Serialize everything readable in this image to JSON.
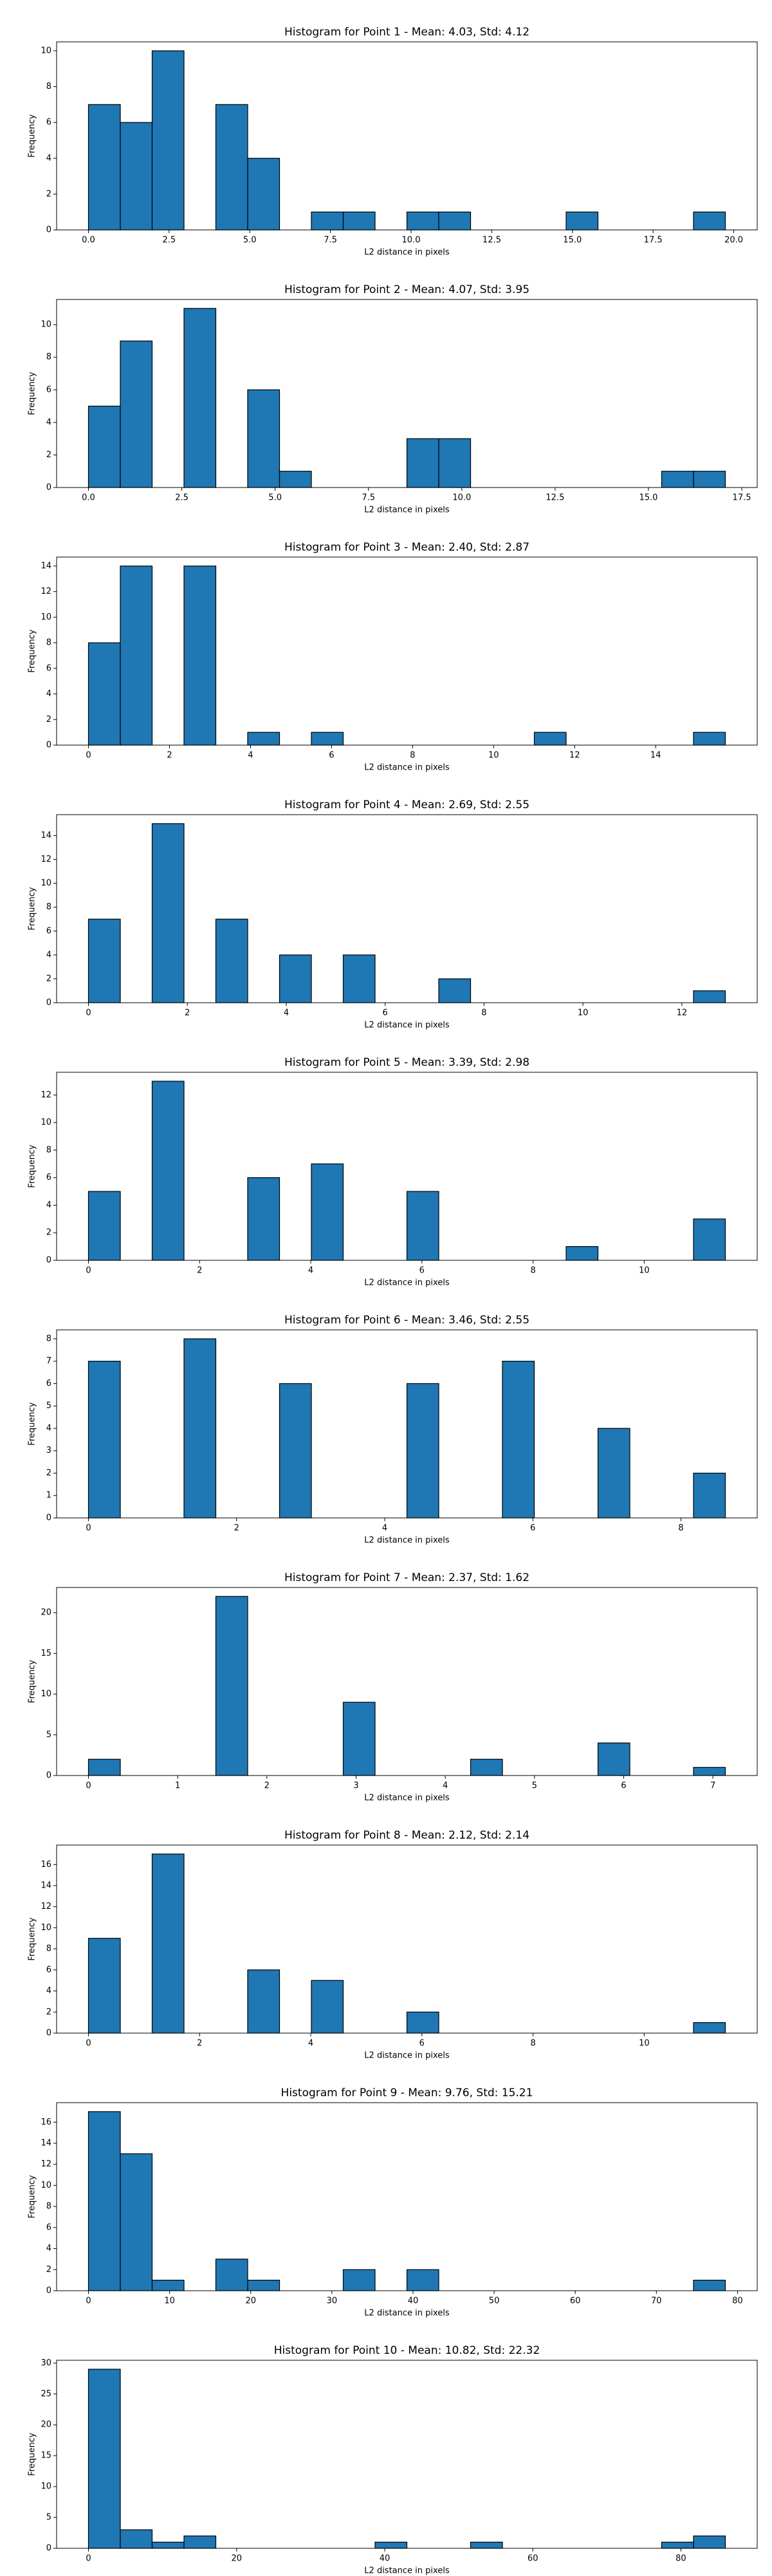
{
  "chart_data": [
    {
      "type": "histogram",
      "title": "Histogram for Point 1 - Mean: 4.03, Std: 4.12",
      "xlabel": "L2 distance in pixels",
      "ylabel": "Frequency",
      "color": "#1f77b4",
      "bins": [
        0,
        0.987,
        1.974,
        2.961,
        3.948,
        4.935,
        5.922,
        6.909,
        7.896,
        8.883,
        9.87,
        10.857,
        11.844,
        12.831,
        13.818,
        14.805,
        15.792,
        16.779,
        17.766,
        18.753,
        19.74
      ],
      "values": [
        7,
        6,
        10,
        0,
        7,
        4,
        0,
        1,
        1,
        0,
        1,
        1,
        0,
        0,
        0,
        1,
        0,
        0,
        0,
        1
      ],
      "xlim": [
        -0.987,
        20.727
      ],
      "ylim": [
        0,
        10.5
      ],
      "xticks": [
        {
          "value": 0,
          "label": "0.0"
        },
        2.5,
        {
          "value": 5,
          "label": "5.0"
        },
        7.5,
        {
          "value": 10,
          "label": "10.0"
        },
        12.5,
        {
          "value": 15,
          "label": "15.0"
        },
        17.5,
        {
          "value": 20,
          "label": "20.0"
        }
      ],
      "yticks": [
        0,
        2,
        4,
        6,
        8,
        10
      ]
    },
    {
      "type": "histogram",
      "title": "Histogram for Point 2 - Mean: 4.07, Std: 3.95",
      "xlabel": "L2 distance in pixels",
      "ylabel": "Frequency",
      "color": "#1f77b4",
      "bins": [
        0,
        0.853,
        1.706,
        2.559,
        3.412,
        4.265,
        5.118,
        5.971,
        6.824,
        7.677,
        8.53,
        9.383,
        10.236,
        11.089,
        11.942,
        12.795,
        13.648,
        14.501,
        15.354,
        16.207,
        17.06
      ],
      "values": [
        5,
        9,
        0,
        11,
        0,
        6,
        1,
        0,
        0,
        0,
        3,
        3,
        0,
        0,
        0,
        0,
        0,
        0,
        1,
        1
      ],
      "xlim": [
        -0.853,
        17.913
      ],
      "ylim": [
        0,
        11.55
      ],
      "xticks": [
        {
          "value": 0,
          "label": "0.0"
        },
        2.5,
        {
          "value": 5,
          "label": "5.0"
        },
        7.5,
        {
          "value": 10,
          "label": "10.0"
        },
        12.5,
        {
          "value": 15,
          "label": "15.0"
        },
        17.5
      ],
      "yticks": [
        0,
        2,
        4,
        6,
        8,
        10
      ]
    },
    {
      "type": "histogram",
      "title": "Histogram for Point 3 - Mean: 2.40, Std: 2.87",
      "xlabel": "L2 distance in pixels",
      "ylabel": "Frequency",
      "color": "#1f77b4",
      "bins": [
        0,
        0.786,
        1.572,
        2.358,
        3.144,
        3.93,
        4.716,
        5.502,
        6.288,
        7.074,
        7.86,
        8.646,
        9.432,
        10.218,
        11.004,
        11.79,
        12.576,
        13.362,
        14.148,
        14.934,
        15.72
      ],
      "values": [
        8,
        14,
        0,
        14,
        0,
        1,
        0,
        1,
        0,
        0,
        0,
        0,
        0,
        0,
        1,
        0,
        0,
        0,
        0,
        1
      ],
      "xlim": [
        -0.786,
        16.506
      ],
      "ylim": [
        0,
        14.7
      ],
      "xticks": [
        0,
        2,
        4,
        6,
        8,
        10,
        12,
        14
      ],
      "yticks": [
        0,
        2,
        4,
        6,
        8,
        10,
        12,
        14
      ]
    },
    {
      "type": "histogram",
      "title": "Histogram for Point 4 - Mean: 2.69, Std: 2.55",
      "xlabel": "L2 distance in pixels",
      "ylabel": "Frequency",
      "color": "#1f77b4",
      "bins": [
        0,
        0.644,
        1.288,
        1.932,
        2.576,
        3.22,
        3.864,
        4.508,
        5.152,
        5.796,
        6.44,
        7.084,
        7.728,
        8.372,
        9.016,
        9.66,
        10.304,
        10.948,
        11.592,
        12.236,
        12.88
      ],
      "values": [
        7,
        0,
        15,
        0,
        7,
        0,
        4,
        0,
        4,
        0,
        0,
        2,
        0,
        0,
        0,
        0,
        0,
        0,
        0,
        1
      ],
      "xlim": [
        -0.644,
        13.524
      ],
      "ylim": [
        0,
        15.75
      ],
      "xticks": [
        0,
        2,
        4,
        6,
        8,
        10,
        12
      ],
      "yticks": [
        0,
        2,
        4,
        6,
        8,
        10,
        12,
        14
      ]
    },
    {
      "type": "histogram",
      "title": "Histogram for Point 5 - Mean: 3.39, Std: 2.98",
      "xlabel": "L2 distance in pixels",
      "ylabel": "Frequency",
      "color": "#1f77b4",
      "bins": [
        0,
        0.573,
        1.146,
        1.719,
        2.292,
        2.865,
        3.438,
        4.011,
        4.584,
        5.157,
        5.73,
        6.303,
        6.876,
        7.449,
        8.022,
        8.595,
        9.168,
        9.741,
        10.314,
        10.887,
        11.46
      ],
      "values": [
        5,
        0,
        13,
        0,
        0,
        6,
        0,
        7,
        0,
        0,
        5,
        0,
        0,
        0,
        0,
        1,
        0,
        0,
        0,
        3
      ],
      "xlim": [
        -0.573,
        12.033
      ],
      "ylim": [
        0,
        13.65
      ],
      "xticks": [
        0,
        2,
        4,
        6,
        8,
        10
      ],
      "yticks": [
        0,
        2,
        4,
        6,
        8,
        10,
        12
      ]
    },
    {
      "type": "histogram",
      "title": "Histogram for Point 6 - Mean: 3.46, Std: 2.55",
      "xlabel": "L2 distance in pixels",
      "ylabel": "Frequency",
      "color": "#1f77b4",
      "bins": [
        0,
        0.43,
        0.86,
        1.29,
        1.72,
        2.15,
        2.58,
        3.01,
        3.44,
        3.87,
        4.3,
        4.73,
        5.16,
        5.59,
        6.02,
        6.45,
        6.88,
        7.31,
        7.74,
        8.17,
        8.6
      ],
      "values": [
        7,
        0,
        0,
        8,
        0,
        0,
        6,
        0,
        0,
        0,
        6,
        0,
        0,
        7,
        0,
        0,
        4,
        0,
        0,
        2
      ],
      "xlim": [
        -0.43,
        9.03
      ],
      "ylim": [
        0,
        8.4
      ],
      "xticks": [
        0,
        2,
        4,
        6,
        8
      ],
      "yticks": [
        0,
        1,
        2,
        3,
        4,
        5,
        6,
        7,
        8
      ]
    },
    {
      "type": "histogram",
      "title": "Histogram for Point 7 - Mean: 2.37, Std: 1.62",
      "xlabel": "L2 distance in pixels",
      "ylabel": "Frequency",
      "color": "#1f77b4",
      "bins": [
        0,
        0.357,
        0.714,
        1.071,
        1.428,
        1.785,
        2.142,
        2.499,
        2.856,
        3.213,
        3.57,
        3.927,
        4.284,
        4.641,
        4.998,
        5.355,
        5.712,
        6.069,
        6.426,
        6.783,
        7.14
      ],
      "values": [
        2,
        0,
        0,
        0,
        22,
        0,
        0,
        0,
        9,
        0,
        0,
        0,
        2,
        0,
        0,
        0,
        4,
        0,
        0,
        1
      ],
      "xlim": [
        -0.357,
        7.497
      ],
      "ylim": [
        0,
        23.1
      ],
      "xticks": [
        0,
        1,
        2,
        3,
        4,
        5,
        6,
        7
      ],
      "yticks": [
        0,
        5,
        10,
        15,
        20
      ]
    },
    {
      "type": "histogram",
      "title": "Histogram for Point 8 - Mean: 2.12, Std: 2.14",
      "xlabel": "L2 distance in pixels",
      "ylabel": "Frequency",
      "color": "#1f77b4",
      "bins": [
        0,
        0.573,
        1.146,
        1.719,
        2.292,
        2.865,
        3.438,
        4.011,
        4.584,
        5.157,
        5.73,
        6.303,
        6.876,
        7.449,
        8.022,
        8.595,
        9.168,
        9.741,
        10.314,
        10.887,
        11.46
      ],
      "values": [
        9,
        0,
        17,
        0,
        0,
        6,
        0,
        5,
        0,
        0,
        2,
        0,
        0,
        0,
        0,
        0,
        0,
        0,
        0,
        1
      ],
      "xlim": [
        -0.573,
        12.033
      ],
      "ylim": [
        0,
        17.85
      ],
      "xticks": [
        0,
        2,
        4,
        6,
        8,
        10
      ],
      "yticks": [
        0,
        2,
        4,
        6,
        8,
        10,
        12,
        14,
        16
      ]
    },
    {
      "type": "histogram",
      "title": "Histogram for Point 9 - Mean: 9.76, Std: 15.21",
      "xlabel": "L2 distance in pixels",
      "ylabel": "Frequency",
      "color": "#1f77b4",
      "bins": [
        0,
        3.925,
        7.85,
        11.775,
        15.7,
        19.625,
        23.55,
        27.475,
        31.4,
        35.325,
        39.25,
        43.175,
        47.1,
        51.025,
        54.95,
        58.875,
        62.8,
        66.725,
        70.65,
        74.575,
        78.5
      ],
      "values": [
        17,
        13,
        1,
        0,
        3,
        1,
        0,
        0,
        2,
        0,
        2,
        0,
        0,
        0,
        0,
        0,
        0,
        0,
        0,
        1
      ],
      "xlim": [
        -3.925,
        82.425
      ],
      "ylim": [
        0,
        17.85
      ],
      "xticks": [
        0,
        10,
        20,
        30,
        40,
        50,
        60,
        70,
        80
      ],
      "yticks": [
        0,
        2,
        4,
        6,
        8,
        10,
        12,
        14,
        16
      ]
    },
    {
      "type": "histogram",
      "title": "Histogram for Point 10 - Mean: 10.82, Std: 22.32",
      "xlabel": "L2 distance in pixels",
      "ylabel": "Frequency",
      "color": "#1f77b4",
      "bins": [
        0,
        4.3,
        8.6,
        12.9,
        17.2,
        21.5,
        25.8,
        30.1,
        34.4,
        38.7,
        43,
        47.3,
        51.6,
        55.9,
        60.2,
        64.5,
        68.8,
        73.1,
        77.4,
        81.7,
        86
      ],
      "values": [
        29,
        3,
        1,
        2,
        0,
        0,
        0,
        0,
        0,
        1,
        0,
        0,
        1,
        0,
        0,
        0,
        0,
        0,
        1,
        2
      ],
      "xlim": [
        -4.3,
        90.3
      ],
      "ylim": [
        0,
        30.45
      ],
      "xticks": [
        0,
        20,
        40,
        60,
        80
      ],
      "yticks": [
        0,
        5,
        10,
        15,
        20,
        25,
        30
      ]
    }
  ]
}
